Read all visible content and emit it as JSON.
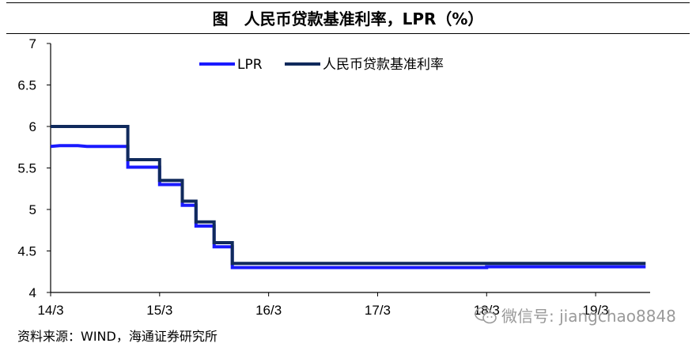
{
  "title": "图　人民币贷款基准利率，LPR（%）",
  "source": "资料来源：WIND，海通证券研究所",
  "watermark": "微信号: jiangchao8848",
  "colors": {
    "lpr": "#1a1aff",
    "benchmark": "#102a5c",
    "axis": "#000000"
  },
  "chart_data": {
    "type": "line",
    "title": "人民币贷款基准利率，LPR（%）",
    "xlabel": "",
    "ylabel": "",
    "x_ticks": [
      "14/3",
      "15/3",
      "16/3",
      "17/3",
      "18/3",
      "19/3"
    ],
    "x_tick_values": [
      0,
      12,
      24,
      36,
      48,
      60
    ],
    "xlim": [
      0,
      66
    ],
    "ylim": [
      4,
      7
    ],
    "y_ticks": [
      "4",
      "4.5",
      "5",
      "5.5",
      "6",
      "6.5",
      "7"
    ],
    "y_tick_values": [
      4,
      4.5,
      5,
      5.5,
      6,
      6.5,
      7
    ],
    "grid": false,
    "legend_position": "top-left",
    "series": [
      {
        "name": "LPR",
        "color": "#1a1aff",
        "points": [
          [
            0,
            5.76
          ],
          [
            1,
            5.77
          ],
          [
            3,
            5.77
          ],
          [
            4,
            5.76
          ],
          [
            8.5,
            5.76
          ],
          [
            8.5,
            5.51
          ],
          [
            12,
            5.51
          ],
          [
            12,
            5.3
          ],
          [
            14.5,
            5.3
          ],
          [
            14.5,
            5.05
          ],
          [
            16,
            5.05
          ],
          [
            16,
            4.8
          ],
          [
            18,
            4.8
          ],
          [
            18,
            4.55
          ],
          [
            20,
            4.55
          ],
          [
            20,
            4.3
          ],
          [
            48,
            4.3
          ],
          [
            48,
            4.31
          ],
          [
            65.5,
            4.31
          ]
        ]
      },
      {
        "name": "人民币贷款基准利率",
        "color": "#102a5c",
        "points": [
          [
            0,
            6.0
          ],
          [
            8.5,
            6.0
          ],
          [
            8.5,
            5.6
          ],
          [
            12,
            5.6
          ],
          [
            12,
            5.35
          ],
          [
            14.5,
            5.35
          ],
          [
            14.5,
            5.1
          ],
          [
            16,
            5.1
          ],
          [
            16,
            4.85
          ],
          [
            18,
            4.85
          ],
          [
            18,
            4.6
          ],
          [
            20,
            4.6
          ],
          [
            20,
            4.35
          ],
          [
            65.5,
            4.35
          ]
        ]
      }
    ]
  }
}
